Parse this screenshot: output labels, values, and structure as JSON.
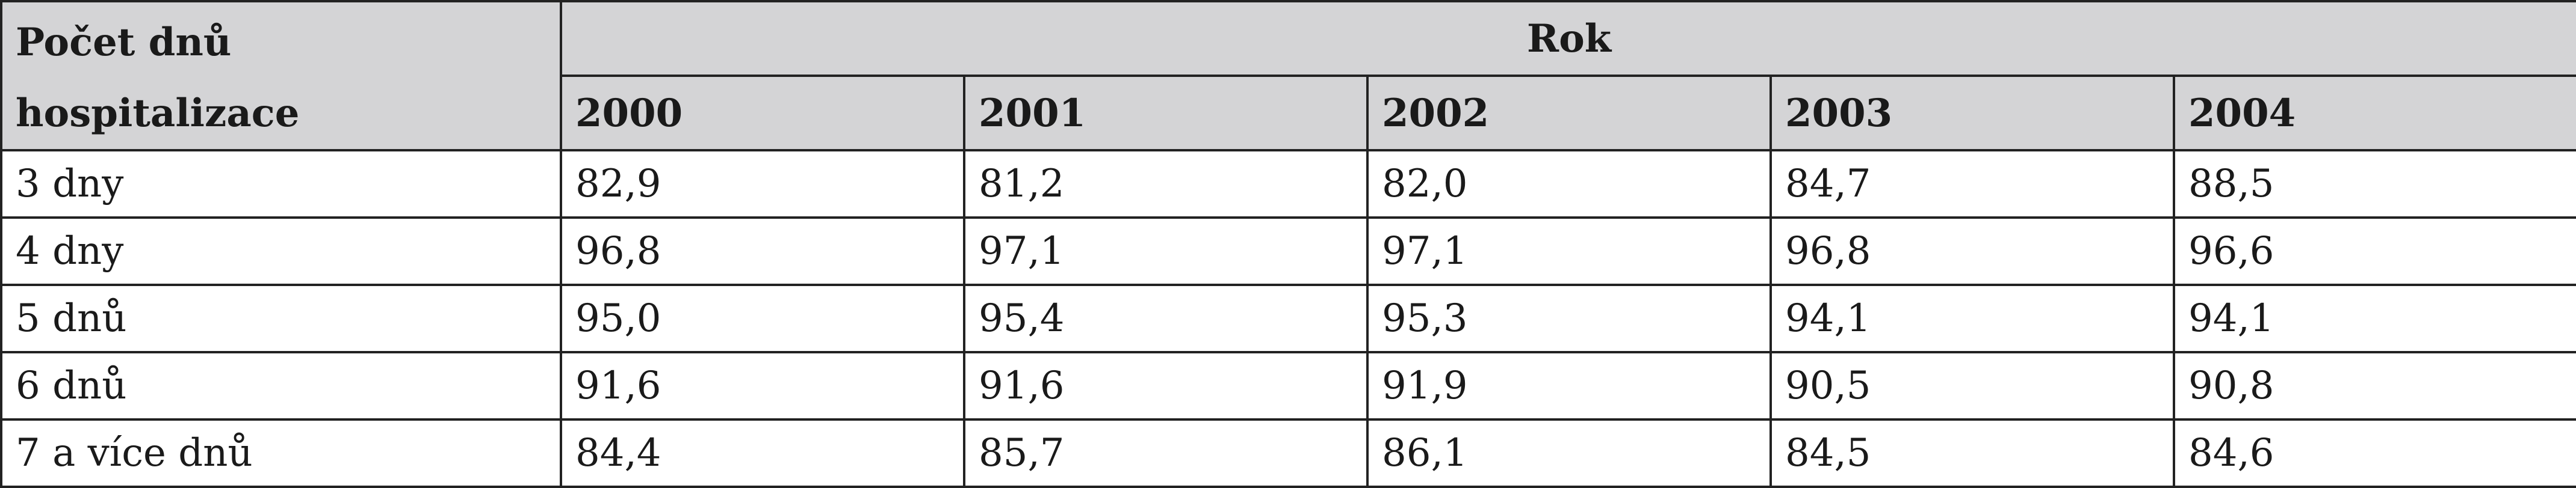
{
  "table": {
    "stub": [
      "Počet dnů",
      "hospitalizace"
    ],
    "group_header": "Rok",
    "years": [
      "2000",
      "2001",
      "2002",
      "2003",
      "2004"
    ],
    "rows": [
      [
        "3 dny",
        "82,9",
        "81,2",
        "82,0",
        "84,7",
        "88,5"
      ],
      [
        "4 dny",
        "96,8",
        "97,1",
        "97,1",
        "96,8",
        "96,6"
      ],
      [
        "5 dnů",
        "95,0",
        "95,4",
        "95,3",
        "94,1",
        "94,1"
      ],
      [
        "6 dnů",
        "91,6",
        "91,6",
        "91,9",
        "90,5",
        "90,8"
      ],
      [
        "7 a více dnů",
        "84,4",
        "85,7",
        "86,1",
        "84,5",
        "84,6"
      ]
    ]
  }
}
